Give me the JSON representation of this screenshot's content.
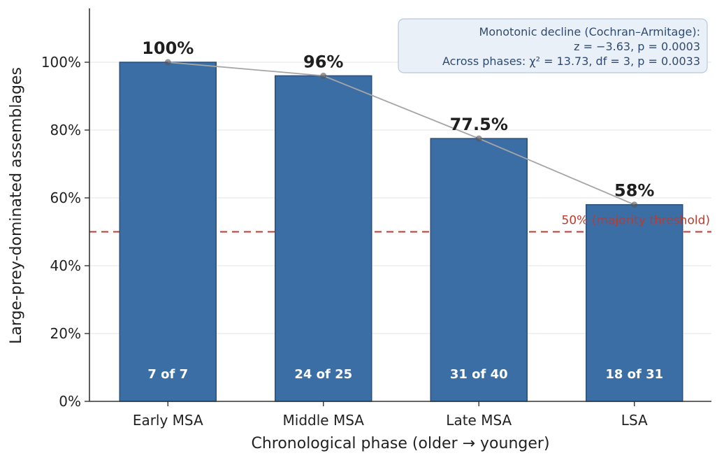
{
  "chart_data": {
    "type": "bar",
    "categories": [
      "Early MSA",
      "Middle MSA",
      "Late MSA",
      "LSA"
    ],
    "values": [
      100,
      96,
      77.5,
      58
    ],
    "value_labels": [
      "100%",
      "96%",
      "77.5%",
      "58%"
    ],
    "count_labels": [
      "7 of 7",
      "24 of 25",
      "31 of 40",
      "18 of 31"
    ],
    "xlabel": "Chronological phase (older → younger)",
    "ylabel": "Large-prey-dominated assemblages",
    "ylim": [
      0,
      100
    ],
    "yticks": [
      0,
      20,
      40,
      60,
      80,
      100
    ],
    "ytick_labels": [
      "0%",
      "20%",
      "40%",
      "60%",
      "80%",
      "100%"
    ],
    "grid": "horizontal",
    "trend_line": true,
    "reference_line": {
      "value": 50,
      "label": "50% (majority threshold)"
    },
    "annotation": {
      "placement": "top-right",
      "lines": [
        "Monotonic decline (Cochran–Armitage):",
        "z = −3.63, p = 0.0003",
        "Across phases: χ² = 13.73, df = 3, p = 0.0033"
      ]
    },
    "colors": {
      "bar_fill": "#3a6ea5",
      "bar_edge": "#2b4f78",
      "reference_line": "#c0392b",
      "trend_line": "#a6a6a6",
      "annotation_box": "#eaf0f7"
    }
  }
}
